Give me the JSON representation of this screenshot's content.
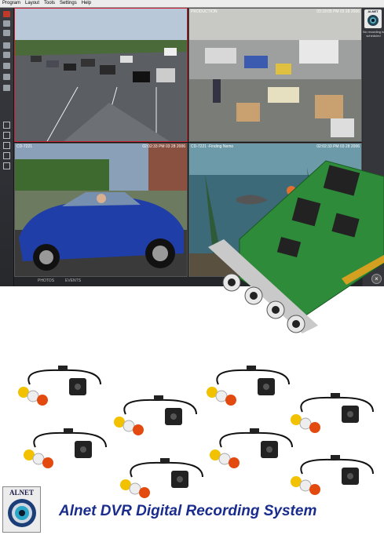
{
  "menu": [
    "Program",
    "Layout",
    "Tools",
    "Settings",
    "Help"
  ],
  "feeds": [
    {
      "label": "",
      "timestamp": ""
    },
    {
      "label": "PRODUCTION",
      "timestamp": "03:18:05 PM 03 28 2006"
    },
    {
      "label": "CD-7221",
      "timestamp": "02:02:33 PM 03 28 2006"
    },
    {
      "label": "CD-7221 -Finding Nemo",
      "timestamp": "02:02:33 PM 03 28 2006"
    }
  ],
  "right_panel": {
    "logo": "ALNET",
    "status": "No recording is scheduled"
  },
  "bottom_tabs": [
    "PHOTOS",
    "EVENTS"
  ],
  "close_label": "×",
  "brand": {
    "logo_text": "ALNET"
  },
  "caption": "Alnet DVR Digital Recording System",
  "icons": [
    "close-icon",
    "camera-icon",
    "layout-grid-icon",
    "capture-card-icon"
  ],
  "colors": {
    "caption": "#1a2c8c",
    "app_bg": "#2b2d31",
    "card_pcb": "#2e8b3a"
  }
}
